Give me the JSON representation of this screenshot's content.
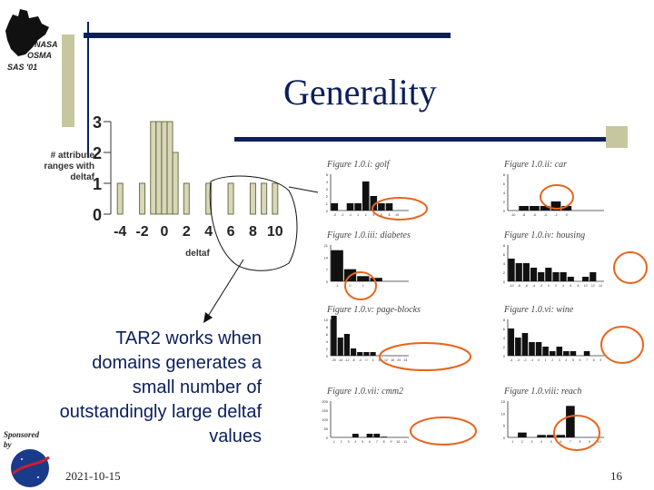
{
  "slide": {
    "title": "Generality",
    "logo_lines": [
      "NASA",
      "OSMA",
      "SAS '01"
    ],
    "sponsor_lines": [
      "Sponsored",
      "by"
    ],
    "body_text": "TAR2 works when domains generates a small number of outstandingly large deltaf values",
    "date": "2021-10-15",
    "page_number": "16"
  },
  "main_chart": {
    "ylabel_lines": [
      "# attribute",
      "ranges with",
      "deltaf"
    ],
    "xlabel": "deltaf"
  },
  "chart_data": [
    {
      "type": "bar",
      "title": "",
      "xlabel": "deltaf",
      "ylabel": "# attribute ranges with deltaf",
      "x": [
        -4,
        -2,
        -1,
        -0.5,
        0,
        0.5,
        1,
        2,
        4,
        6,
        8,
        9,
        10
      ],
      "values": [
        1,
        1,
        3,
        3,
        3,
        3,
        2,
        1,
        1,
        1,
        1,
        1,
        1
      ],
      "xticks": [
        -4,
        -2,
        0,
        2,
        4,
        6,
        8,
        10
      ],
      "yticks": [
        0,
        1,
        2,
        3
      ],
      "xlim": [
        -5,
        11
      ],
      "ylim": [
        0,
        3
      ]
    },
    {
      "type": "bar",
      "title": "Figure 1.0.i: golf",
      "values": [
        1,
        0,
        1,
        1,
        4,
        2,
        1,
        1,
        0,
        0
      ],
      "categories": [
        "-3",
        "-2",
        "-1",
        "1",
        "2",
        "5",
        "6",
        "8",
        "10",
        ""
      ],
      "yticks": [
        0,
        1,
        2,
        3,
        4,
        5
      ]
    },
    {
      "type": "bar",
      "title": "Figure 1.0.ii: car",
      "values": [
        0,
        1,
        1,
        1,
        2,
        1,
        0,
        0,
        0
      ],
      "categories": [
        "-10",
        "-8",
        "-6",
        "-4",
        "-2",
        "0",
        "",
        "",
        ""
      ],
      "yticks": [
        0,
        2,
        4,
        6,
        8
      ]
    },
    {
      "type": "bar",
      "title": "Figure 1.0.iii: diabetes",
      "values": [
        18,
        7,
        3,
        2,
        0,
        0
      ],
      "categories": [
        "-1",
        "0",
        "1",
        "2",
        "",
        ""
      ],
      "yticks": [
        0,
        7,
        14,
        21
      ]
    },
    {
      "type": "bar",
      "title": "Figure 1.0.iv: housing",
      "values": [
        5,
        4,
        4,
        3,
        2,
        3,
        2,
        2,
        1,
        0,
        1,
        2,
        0
      ],
      "categories": [
        "-10",
        "-8",
        "-6",
        "-4",
        "-2",
        "0",
        "2",
        "4",
        "6",
        "8",
        "10",
        "12",
        "14"
      ],
      "yticks": [
        0,
        2,
        4,
        6,
        8
      ]
    },
    {
      "type": "bar",
      "title": "Figure 1.0.v: page-blocks",
      "values": [
        11,
        5,
        6,
        2,
        1,
        1,
        1,
        0,
        0,
        0,
        0,
        0
      ],
      "categories": [
        "-20",
        "-16",
        "-12",
        "-8",
        "-4",
        "0",
        "4",
        "8",
        "12",
        "16",
        "20",
        "24"
      ],
      "yticks": [
        0,
        2,
        4,
        6,
        8,
        10
      ]
    },
    {
      "type": "bar",
      "title": "Figure 1.0.vi: wine",
      "values": [
        6,
        4,
        5,
        3,
        3,
        2,
        1,
        2,
        1,
        1,
        0,
        1,
        0,
        0
      ],
      "categories": [
        "-4",
        "-3",
        "-2",
        "-1",
        "0",
        "1",
        "2",
        "3",
        "4",
        "5",
        "6",
        "7",
        "8",
        "9"
      ],
      "yticks": [
        0,
        2,
        4,
        6,
        8
      ]
    },
    {
      "type": "bar",
      "title": "Figure 1.0.vii: cmm2",
      "values": [
        0,
        0,
        0,
        20,
        0,
        20,
        20,
        4,
        0,
        0,
        0
      ],
      "categories": [
        "1",
        "2",
        "3",
        "4",
        "5",
        "6",
        "7",
        "8",
        "9",
        "10",
        "11"
      ],
      "yticks": [
        0,
        50,
        100,
        150,
        200
      ]
    },
    {
      "type": "bar",
      "title": "Figure 1.0.viii: reach",
      "values": [
        0,
        2,
        0,
        1,
        1,
        1,
        13,
        0,
        0,
        0
      ],
      "categories": [
        "1",
        "2",
        "3",
        "4",
        "5",
        "6",
        "7",
        "8",
        "9",
        "10"
      ],
      "yticks": [
        0,
        5,
        10,
        15
      ]
    }
  ]
}
